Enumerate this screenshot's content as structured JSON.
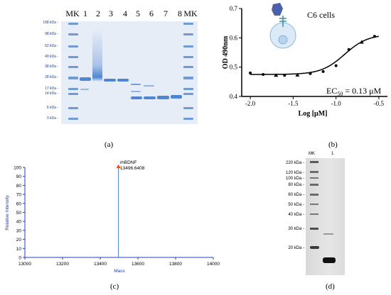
{
  "panel_a": {
    "caption": "(a)",
    "lane_labels": [
      "MK",
      "1",
      "2",
      "3",
      "4",
      "5",
      "6",
      "7",
      "8",
      "MK"
    ],
    "ladder_labels": [
      "198 kDa -",
      "98 kDa -",
      "62 kDa -",
      "49 kDa -",
      "38 kDa -",
      "28 kDa -",
      "17 kDa -",
      "14 kDa -",
      "6 kDa -",
      "3 kDa -"
    ]
  },
  "panel_b": {
    "caption": "(b)",
    "inset_label": "C6 cells",
    "ec50_text": "EC",
    "ec50_sub": "50",
    "ec50_value": " = 0.13 μM",
    "colors": {
      "curve": "#000000"
    }
  },
  "panel_c": {
    "caption": "(c)",
    "peak_label_1": "rhBDNF",
    "peak_label_2": "13496.6408",
    "colors": {
      "axis": "#1f3fbf",
      "peak": "#4a7fd4",
      "marker": "#ff4500"
    }
  },
  "panel_d": {
    "caption": "(d)",
    "lane_labels": [
      "MK",
      "1"
    ],
    "ladder_labels": [
      "220 kDa -",
      "120 kDa -",
      "100 kDa -",
      "80 kDa -",
      "60 kDa -",
      "50 kDa -",
      "40 kDa -",
      "30 kDa -",
      "20 kDa -"
    ]
  },
  "chart_data": [
    {
      "type": "scatter",
      "xlabel": "Log [μM]",
      "ylabel": "OD 490nm",
      "xlim": [
        -2.1,
        -0.4
      ],
      "ylim": [
        0.4,
        0.7
      ],
      "x_ticks": [
        -2.0,
        -1.5,
        -1.0,
        -0.5
      ],
      "x_tick_labels": [
        "-2.0",
        "-1.5",
        "-1.0",
        "-0.5"
      ],
      "y_ticks": [
        0.4,
        0.5,
        0.6,
        0.7
      ],
      "y_tick_labels": [
        "0.4",
        "0.5",
        "0.6",
        "0.7"
      ],
      "series": [
        {
          "x": [
            -2.0,
            -1.85,
            -1.7,
            -1.6,
            -1.45,
            -1.3,
            -1.15,
            -1.0,
            -0.85,
            -0.7,
            -0.55
          ],
          "y": [
            0.48,
            0.475,
            0.472,
            0.472,
            0.473,
            0.478,
            0.485,
            0.505,
            0.56,
            0.585,
            0.605
          ]
        }
      ],
      "fit": {
        "bottom": 0.475,
        "top": 0.612,
        "logEC50": -0.9,
        "hill": 3.2
      },
      "point_markers": [
        "circle",
        "circle",
        "triangle",
        "circle",
        "triangle",
        "circle",
        "circle",
        "circle",
        "circle",
        "triangle",
        "circle"
      ]
    },
    {
      "type": "line",
      "xlabel": "Mass",
      "ylabel": "Relative Intensity",
      "xlim": [
        13000,
        14000
      ],
      "ylim": [
        0,
        100
      ],
      "x_ticks": [
        13000,
        13200,
        13400,
        13600,
        13800,
        14000
      ],
      "x_tick_labels": [
        "13000",
        "13200",
        "13400",
        "13600",
        "13800",
        "14000"
      ],
      "y_ticks": [
        0,
        10,
        20,
        30,
        40,
        50,
        60,
        70,
        80,
        90,
        100
      ],
      "y_tick_labels": [
        "0",
        "10",
        "20",
        "30",
        "40",
        "50",
        "60",
        "70",
        "80",
        "90",
        "100"
      ],
      "series": [
        {
          "x": [
            13496.6408
          ],
          "y": [
            100
          ]
        }
      ]
    }
  ]
}
